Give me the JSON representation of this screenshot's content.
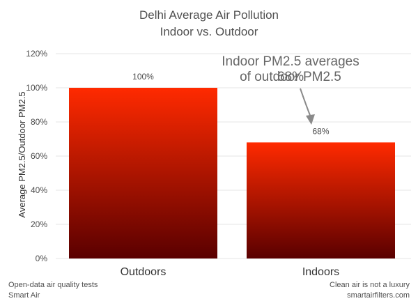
{
  "title_line1": "Delhi Average Air Pollution",
  "title_line2": "Indoor vs. Outdoor",
  "annotation": {
    "line1": "Indoor PM2.5 averages 68%",
    "line2": "of outdoor PM2.5"
  },
  "footer": {
    "left_line1": "Open-data air quality tests",
    "left_line2": "Smart Air",
    "right_line1": "Clean air is not a luxury",
    "right_line2": "smartairfilters.com"
  },
  "colors": {
    "bar_top": "#ff2a00",
    "bar_bottom": "#5a0000",
    "grid": "#e6e6e6",
    "text": "#4a4a4a"
  },
  "chart_data": {
    "type": "bar",
    "title": "Delhi Average Air Pollution Indoor vs. Outdoor",
    "xlabel": "",
    "ylabel": "Average PM2.5/Outdoor PM2.5",
    "categories": [
      "Outdoors",
      "Indoors"
    ],
    "values": [
      100,
      68
    ],
    "data_labels": [
      "100%",
      "68%"
    ],
    "ylim": [
      0,
      120
    ],
    "yticks": [
      0,
      20,
      40,
      60,
      80,
      100,
      120
    ],
    "ytick_labels": [
      "0%",
      "20%",
      "40%",
      "60%",
      "80%",
      "100%",
      "120%"
    ],
    "grid": true,
    "legend": "none"
  }
}
